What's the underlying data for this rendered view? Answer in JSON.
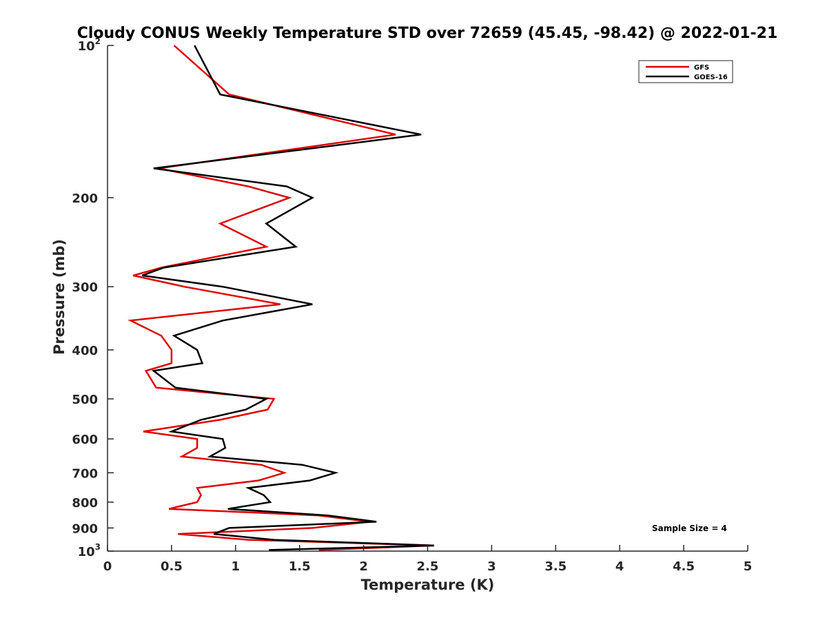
{
  "chart_data": {
    "type": "line",
    "title": "Cloudy CONUS Weekly Temperature STD over 72659 (45.45, -98.42) @ 2022-01-21",
    "xlabel": "Temperature (K)",
    "ylabel": "Pressure (mb)",
    "xlim": [
      0,
      5
    ],
    "ylim": [
      100,
      1000
    ],
    "yscale": "log",
    "y_reversed": true,
    "xticks": [
      "0",
      "0.5",
      "1",
      "1.5",
      "2",
      "2.5",
      "3",
      "3.5",
      "4",
      "4.5",
      "5"
    ],
    "yticks": [
      {
        "value": 100,
        "base": "10",
        "exp": "2"
      },
      {
        "value": 200,
        "label": "200"
      },
      {
        "value": 300,
        "label": "300"
      },
      {
        "value": 400,
        "label": "400"
      },
      {
        "value": 500,
        "label": "500"
      },
      {
        "value": 600,
        "label": "600"
      },
      {
        "value": 700,
        "label": "700"
      },
      {
        "value": 800,
        "label": "800"
      },
      {
        "value": 900,
        "label": "900"
      },
      {
        "value": 1000,
        "base": "10",
        "exp": "3"
      }
    ],
    "legend_position": "top-right",
    "annotation": "Sample Size = 4",
    "series": [
      {
        "name": "GFS",
        "color": "#e00000",
        "points": [
          [
            0.52,
            100
          ],
          [
            0.95,
            125
          ],
          [
            2.25,
            150
          ],
          [
            0.4,
            175
          ],
          [
            1.1,
            190
          ],
          [
            1.42,
            200
          ],
          [
            0.88,
            225
          ],
          [
            1.24,
            250
          ],
          [
            0.42,
            275
          ],
          [
            0.2,
            285
          ],
          [
            0.6,
            300
          ],
          [
            1.35,
            325
          ],
          [
            0.18,
            350
          ],
          [
            0.42,
            375
          ],
          [
            0.5,
            400
          ],
          [
            0.5,
            425
          ],
          [
            0.3,
            440
          ],
          [
            0.38,
            475
          ],
          [
            1.3,
            500
          ],
          [
            1.25,
            525
          ],
          [
            0.88,
            550
          ],
          [
            0.28,
            580
          ],
          [
            0.7,
            600
          ],
          [
            0.7,
            625
          ],
          [
            0.58,
            650
          ],
          [
            1.2,
            675
          ],
          [
            1.38,
            700
          ],
          [
            1.18,
            725
          ],
          [
            0.7,
            750
          ],
          [
            0.73,
            775
          ],
          [
            0.7,
            800
          ],
          [
            0.48,
            825
          ],
          [
            1.65,
            850
          ],
          [
            2.05,
            875
          ],
          [
            1.6,
            900
          ],
          [
            0.55,
            925
          ],
          [
            1.1,
            950
          ],
          [
            2.55,
            975
          ],
          [
            1.65,
            995
          ]
        ]
      },
      {
        "name": "GOES-16",
        "color": "#000000",
        "points": [
          [
            0.68,
            100
          ],
          [
            0.88,
            125
          ],
          [
            2.45,
            150
          ],
          [
            0.36,
            175
          ],
          [
            1.4,
            190
          ],
          [
            1.6,
            200
          ],
          [
            1.24,
            225
          ],
          [
            1.47,
            250
          ],
          [
            0.44,
            275
          ],
          [
            0.27,
            285
          ],
          [
            0.9,
            300
          ],
          [
            1.6,
            325
          ],
          [
            0.9,
            350
          ],
          [
            0.52,
            375
          ],
          [
            0.7,
            400
          ],
          [
            0.74,
            425
          ],
          [
            0.36,
            440
          ],
          [
            0.53,
            475
          ],
          [
            1.24,
            500
          ],
          [
            1.08,
            525
          ],
          [
            0.73,
            550
          ],
          [
            0.5,
            580
          ],
          [
            0.9,
            600
          ],
          [
            0.92,
            625
          ],
          [
            0.8,
            650
          ],
          [
            1.52,
            675
          ],
          [
            1.78,
            700
          ],
          [
            1.58,
            725
          ],
          [
            1.1,
            750
          ],
          [
            1.22,
            775
          ],
          [
            1.27,
            800
          ],
          [
            0.94,
            825
          ],
          [
            1.72,
            850
          ],
          [
            2.1,
            875
          ],
          [
            0.95,
            900
          ],
          [
            0.83,
            925
          ],
          [
            1.3,
            950
          ],
          [
            2.55,
            975
          ],
          [
            1.26,
            995
          ]
        ]
      }
    ]
  }
}
